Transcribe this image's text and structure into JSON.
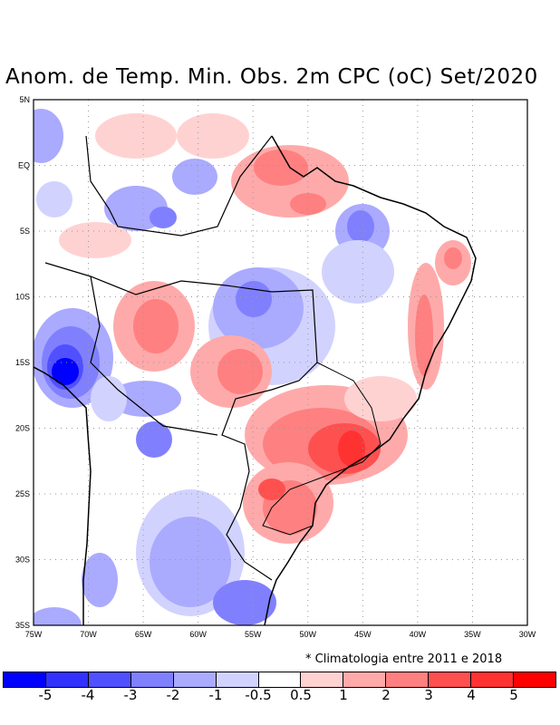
{
  "title": "Anom. de Temp. Min. Obs. 2m CPC (oC) Set/2020",
  "note": "* Climatologia entre 2011 e 2018",
  "lat_labels": [
    "5N",
    "EQ",
    "5S",
    "10S",
    "15S",
    "20S",
    "25S",
    "30S",
    "35S"
  ],
  "lon_labels": [
    "75W",
    "70W",
    "65W",
    "60W",
    "55W",
    "50W",
    "45W",
    "40W",
    "35W",
    "30W"
  ],
  "colorbar": {
    "colors": [
      "#0000ff",
      "#3232ff",
      "#5050ff",
      "#8080ff",
      "#aaaaff",
      "#d2d2ff",
      "#ffffff",
      "#ffd2d2",
      "#ffaaaa",
      "#ff8080",
      "#ff5050",
      "#ff3232",
      "#ff0000"
    ],
    "labels": [
      "-5",
      "-4",
      "-3",
      "-2",
      "-1",
      "-0.5",
      "0.5",
      "1",
      "2",
      "3",
      "4",
      "5"
    ]
  }
}
